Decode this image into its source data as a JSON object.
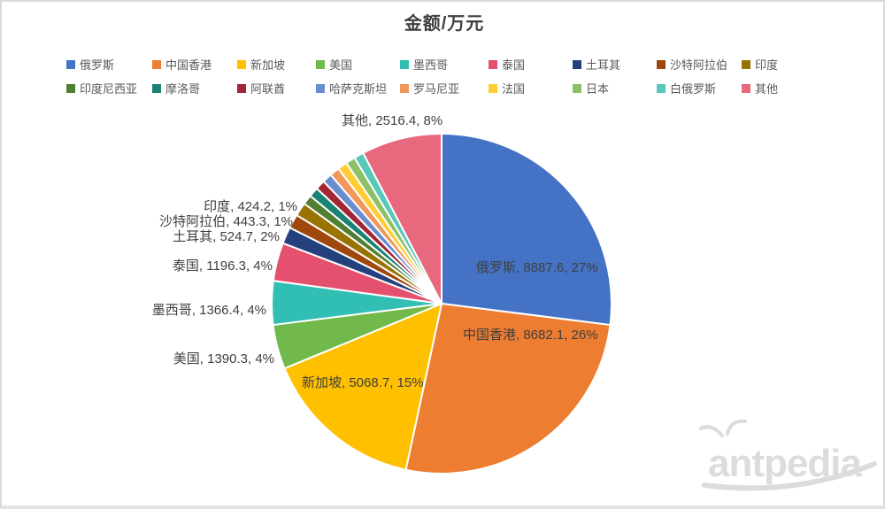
{
  "title": "金额/万元",
  "legend": {
    "position": "top",
    "rows": 2
  },
  "chart_data": {
    "type": "pie",
    "title": "金额/万元",
    "unit": "万元",
    "start_angle_deg": 0,
    "direction": "clockwise",
    "series": [
      {
        "id": "russia",
        "name": "俄罗斯",
        "value": 8887.6,
        "pct": "27%",
        "color": "#4472C4"
      },
      {
        "id": "hong-kong",
        "name": "中国香港",
        "value": 8682.1,
        "pct": "26%",
        "color": "#ED7D31"
      },
      {
        "id": "singapore",
        "name": "新加坡",
        "value": 5068.7,
        "pct": "15%",
        "color": "#FFC000"
      },
      {
        "id": "usa",
        "name": "美国",
        "value": 1390.3,
        "pct": "4%",
        "color": "#70B94A"
      },
      {
        "id": "mexico",
        "name": "墨西哥",
        "value": 1366.4,
        "pct": "4%",
        "color": "#30BFB2"
      },
      {
        "id": "thailand",
        "name": "泰国",
        "value": 1196.3,
        "pct": "4%",
        "color": "#E4506E"
      },
      {
        "id": "turkey",
        "name": "土耳其",
        "value": 524.7,
        "pct": "2%",
        "color": "#24417D"
      },
      {
        "id": "saudi-arabia",
        "name": "沙特阿拉伯",
        "value": 443.3,
        "pct": "1%",
        "color": "#9E480E"
      },
      {
        "id": "india",
        "name": "印度",
        "value": 424.2,
        "pct": "1%",
        "color": "#997300"
      },
      {
        "id": "indonesia",
        "name": "印度尼西亚",
        "value": 302,
        "estimated": true,
        "color": "#507E32"
      },
      {
        "id": "morocco",
        "name": "摩洛哥",
        "value": 302,
        "estimated": true,
        "color": "#1B8374"
      },
      {
        "id": "uae",
        "name": "阿联酋",
        "value": 302,
        "estimated": true,
        "color": "#A22633"
      },
      {
        "id": "kazakhstan",
        "name": "哈萨克斯坦",
        "value": 302,
        "estimated": true,
        "color": "#698ED0"
      },
      {
        "id": "romania",
        "name": "罗马尼亚",
        "value": 302,
        "estimated": true,
        "color": "#F1975A"
      },
      {
        "id": "france",
        "name": "法国",
        "value": 302,
        "estimated": true,
        "color": "#FFCD33"
      },
      {
        "id": "japan",
        "name": "日本",
        "value": 302,
        "estimated": true,
        "color": "#8DC168"
      },
      {
        "id": "belarus",
        "name": "白俄罗斯",
        "value": 302,
        "estimated": true,
        "color": "#57C8B9"
      },
      {
        "id": "other",
        "name": "其他",
        "value": 2516.4,
        "pct": "8%",
        "color": "#E8687E"
      }
    ],
    "data_labels": [
      {
        "id": "other",
        "text": "其他, 2516.4, 8%"
      },
      {
        "id": "india",
        "text": "印度, 424.2, 1%"
      },
      {
        "id": "saudi-arabia",
        "text": "沙特阿拉伯, 443.3, 1%"
      },
      {
        "id": "turkey",
        "text": "土耳其, 524.7, 2%"
      },
      {
        "id": "thailand",
        "text": "泰国, 1196.3, 4%"
      },
      {
        "id": "mexico",
        "text": "墨西哥, 1366.4, 4%"
      },
      {
        "id": "usa",
        "text": "美国, 1390.3, 4%"
      },
      {
        "id": "singapore",
        "text": "新加坡, 5068.7, 15%"
      },
      {
        "id": "hong-kong",
        "text": "中国香港, 8682.1, 26%"
      },
      {
        "id": "russia",
        "text": "俄罗斯, 8887.6, 27%"
      }
    ]
  },
  "watermark": {
    "text": "antpedia",
    "color": "#DCDCDC"
  }
}
